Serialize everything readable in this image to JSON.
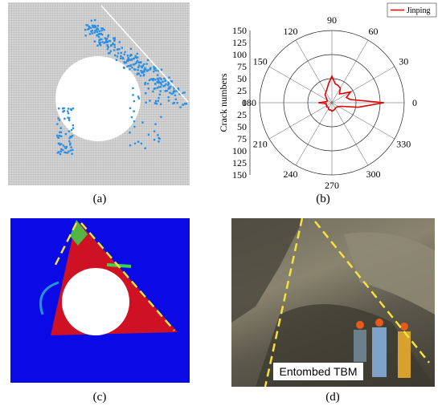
{
  "captions": {
    "a": "(a)",
    "b": "(b)",
    "c": "(c)",
    "d": "(d)"
  },
  "chart_data": {
    "type": "polar",
    "legend": "Jinping",
    "radial_label": "Crack numbers",
    "radial_ticks": [
      0,
      25,
      50,
      75,
      100,
      125,
      150
    ],
    "radial_tick_labels_top": [
      "150",
      "125",
      "100",
      "75",
      "50",
      "25",
      "0"
    ],
    "radial_tick_labels_bottom": [
      "25",
      "50",
      "75",
      "100",
      "125",
      "150"
    ],
    "angle_labels": [
      "0",
      "30",
      "60",
      "90",
      "120",
      "150",
      "180",
      "210",
      "240",
      "270",
      "300",
      "330"
    ],
    "rlim": [
      0,
      150
    ],
    "angles": [
      0,
      10,
      20,
      30,
      40,
      50,
      60,
      70,
      80,
      90,
      100,
      110,
      120,
      130,
      140,
      150,
      160,
      170,
      180,
      190,
      200,
      210,
      220,
      230,
      240,
      250,
      260,
      270,
      280,
      290,
      300,
      310,
      320,
      330,
      340,
      350
    ],
    "values": [
      108,
      38,
      32,
      45,
      30,
      24,
      35,
      38,
      40,
      55,
      40,
      30,
      25,
      22,
      15,
      12,
      10,
      12,
      28,
      12,
      13,
      12,
      14,
      12,
      14,
      16,
      15,
      18,
      16,
      15,
      14,
      13,
      14,
      16,
      22,
      55
    ],
    "color": "#e00000"
  },
  "panel_d": {
    "label": "Entombed TBM"
  },
  "colors": {
    "crack_blue": "#2a8fe8",
    "sim_c_bg": "#0a0ae6",
    "sim_c_red": "#e01414",
    "dash_yellow": "#f5e23c"
  }
}
